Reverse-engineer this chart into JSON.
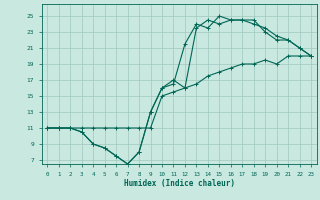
{
  "bg_color": "#c8e8e0",
  "grid_color": "#a0c8be",
  "line_color": "#006655",
  "xlabel": "Humidex (Indice chaleur)",
  "xlim": [
    -0.5,
    23.5
  ],
  "ylim": [
    6.5,
    26.5
  ],
  "yticks": [
    7,
    9,
    11,
    13,
    15,
    17,
    19,
    21,
    23,
    25
  ],
  "xticks": [
    0,
    1,
    2,
    3,
    4,
    5,
    6,
    7,
    8,
    9,
    10,
    11,
    12,
    13,
    14,
    15,
    16,
    17,
    18,
    19,
    20,
    21,
    22,
    23
  ],
  "curve1_x": [
    0,
    1,
    2,
    3,
    4,
    5,
    6,
    7,
    8,
    9,
    10,
    11,
    12,
    13,
    14,
    15,
    16,
    17,
    18,
    19,
    20,
    21,
    22,
    23
  ],
  "curve1_y": [
    11,
    11,
    11,
    10.5,
    9,
    8.5,
    7.5,
    6.5,
    8,
    13,
    16,
    17,
    16,
    23.5,
    24.5,
    24,
    24.5,
    24.5,
    24,
    23.5,
    22.5,
    22,
    21,
    20
  ],
  "curve2_x": [
    0,
    1,
    2,
    3,
    4,
    5,
    6,
    7,
    8,
    9,
    10,
    11,
    12,
    13,
    14,
    15,
    16,
    17,
    18,
    19,
    20,
    21,
    22,
    23
  ],
  "curve2_y": [
    11,
    11,
    11,
    10.5,
    9,
    8.5,
    7.5,
    6.5,
    8,
    13,
    16,
    16.5,
    21.5,
    24,
    23.5,
    25,
    24.5,
    24.5,
    24.5,
    23,
    22,
    22,
    21,
    20
  ],
  "curve3_x": [
    0,
    1,
    2,
    3,
    4,
    5,
    6,
    7,
    8,
    9,
    10,
    11,
    12,
    13,
    14,
    15,
    16,
    17,
    18,
    19,
    20,
    21,
    22,
    23
  ],
  "curve3_y": [
    11,
    11,
    11,
    11,
    11,
    11,
    11,
    11,
    11,
    11,
    15,
    15.5,
    16,
    16.5,
    17.5,
    18,
    18.5,
    19,
    19,
    19.5,
    19,
    20,
    20,
    20
  ]
}
